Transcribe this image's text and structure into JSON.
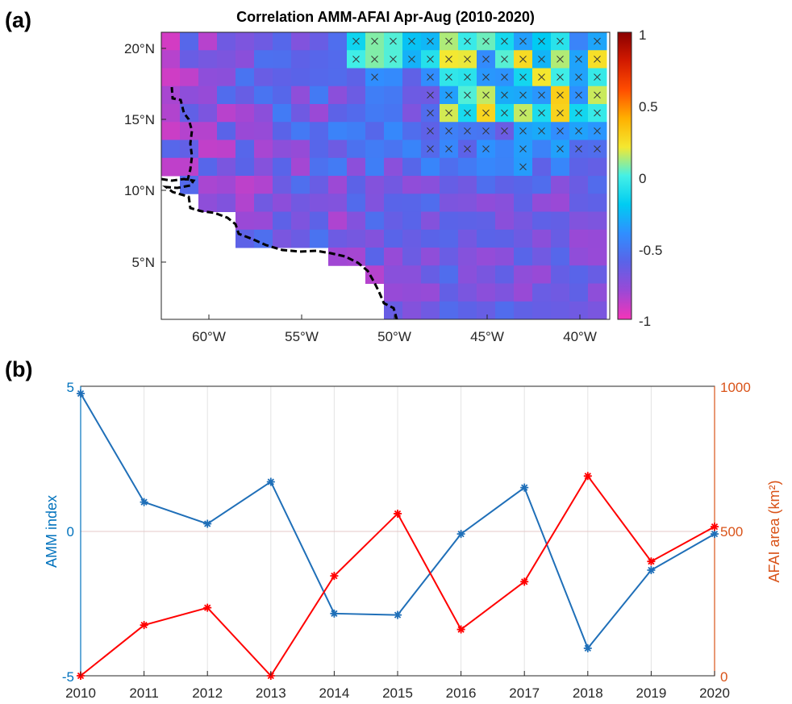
{
  "panel_a": {
    "label": "(a)",
    "title": "Correlation AMM-AFAI Apr-Aug (2010-2020)",
    "x_ticks": [
      "60°W",
      "55°W",
      "50°W",
      "45°W",
      "40°W"
    ],
    "y_ticks": [
      "20°N",
      "15°N",
      "10°N",
      "5°N"
    ],
    "colorbar_ticks": [
      "1",
      "0.5",
      "0",
      "-0.5",
      "-1"
    ],
    "colorbar_stops": [
      "#f534b8",
      "#9a49d6",
      "#5a63e8",
      "#2f8fff",
      "#00ccf2",
      "#44f0e6",
      "#f4e830",
      "#ffb000",
      "#ff4d00",
      "#d21a00",
      "#8a0000"
    ]
  },
  "panel_b": {
    "label": "(b)",
    "left_axis_label": "AMM index",
    "right_axis_label": "AFAI area (km²)",
    "left_ticks": [
      "5",
      "0",
      "-5"
    ],
    "right_ticks": [
      "1000",
      "500",
      "0"
    ],
    "left_color": "#0072bd",
    "right_color": "#d95319",
    "series_colors": {
      "amm": "#1f6fb8",
      "afai": "#ff0000"
    }
  },
  "chart_data": [
    {
      "type": "heatmap",
      "title": "Correlation AMM-AFAI Apr-Aug (2010-2020)",
      "x_range": [
        -62.5,
        -38.5
      ],
      "y_range": [
        1,
        21
      ],
      "colorbar_range": [
        -1,
        1
      ],
      "x_tick_labels": [
        "60°W",
        "55°W",
        "50°W",
        "45°W",
        "40°W"
      ],
      "y_tick_labels": [
        "20°N",
        "15°N",
        "10°N",
        "5°N"
      ],
      "notes": "Gridded correlation coefficients (approx. 1° cells); crosses mark significant cells; dashed line is the South American coastline."
    },
    {
      "type": "line",
      "x": [
        2010,
        2011,
        2012,
        2013,
        2014,
        2015,
        2016,
        2017,
        2018,
        2019,
        2020
      ],
      "series": [
        {
          "name": "AMM index",
          "axis": "left",
          "values": [
            4.75,
            1.0,
            0.25,
            1.7,
            -2.85,
            -2.9,
            -0.1,
            1.5,
            -4.05,
            -1.35,
            -0.1
          ]
        },
        {
          "name": "AFAI area (km²)",
          "axis": "right",
          "values": [
            0,
            175,
            235,
            0,
            345,
            560,
            160,
            325,
            690,
            395,
            515
          ]
        }
      ],
      "ylabel": "AMM index",
      "y2label": "AFAI area (km²)",
      "ylim": [
        -5,
        5
      ],
      "y2lim": [
        0,
        1000
      ],
      "xlim": [
        2010,
        2020
      ],
      "grid": "vertical"
    }
  ]
}
